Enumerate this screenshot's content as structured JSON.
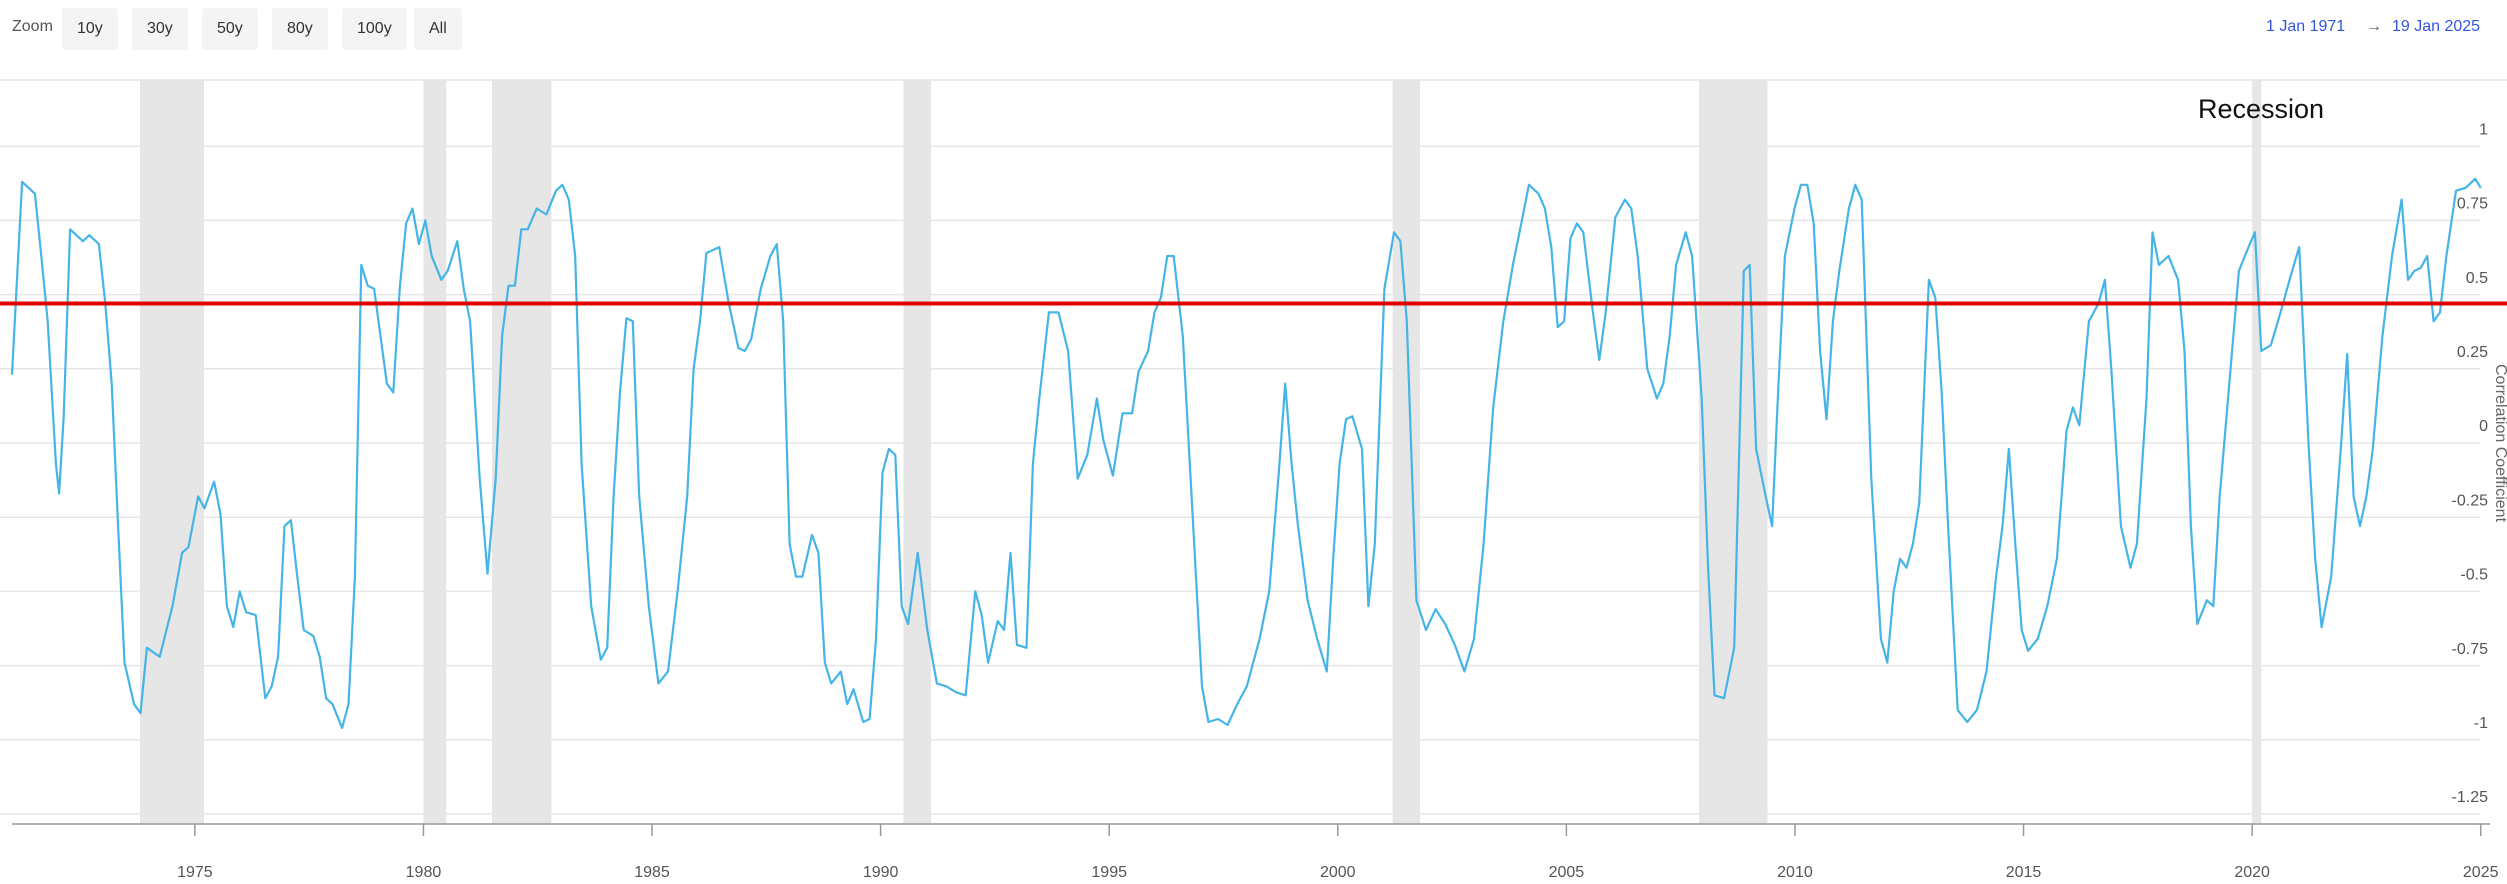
{
  "controls": {
    "zoom_label": "Zoom",
    "zoom_buttons": [
      "10y",
      "30y",
      "50y",
      "80y",
      "100y",
      "All"
    ],
    "date_from": "1 Jan 1971",
    "arrow": "→",
    "date_to": "19 Jan 2025"
  },
  "chart_data": {
    "type": "line",
    "y_label": "Correlation Coefficient",
    "recession_label": "Recession",
    "recession_color": "#e6e6e6",
    "recessions": [
      [
        1973.8,
        1975.2
      ],
      [
        1980.0,
        1980.5
      ],
      [
        1981.5,
        1982.8
      ],
      [
        1990.5,
        1991.1
      ],
      [
        2001.2,
        2001.8
      ],
      [
        2007.9,
        2009.4
      ],
      [
        2020.0,
        2020.2
      ]
    ],
    "reference_line": {
      "value": 0.47,
      "color": "#e00000"
    },
    "xlim": [
      1971,
      2025.05
    ],
    "xticks": [
      1975,
      1980,
      1985,
      1990,
      1995,
      2000,
      2005,
      2010,
      2015,
      2020,
      2025
    ],
    "ylim": [
      -1.25,
      1.25
    ],
    "yticks": [
      1,
      0.75,
      0.5,
      0.25,
      0,
      -0.25,
      -0.5,
      -0.75,
      -1,
      -1.25
    ],
    "grid": true,
    "x": [
      1971.0,
      1971.22,
      1971.5,
      1971.64,
      1971.78,
      1971.96,
      1972.03,
      1972.13,
      1972.27,
      1972.55,
      1972.69,
      1972.9,
      1973.04,
      1973.18,
      1973.32,
      1973.46,
      1973.67,
      1973.81,
      1973.95,
      1974.23,
      1974.51,
      1974.72,
      1974.86,
      1975.07,
      1975.21,
      1975.42,
      1975.56,
      1975.7,
      1975.84,
      1975.98,
      1976.12,
      1976.33,
      1976.54,
      1976.68,
      1976.82,
      1976.96,
      1977.1,
      1977.24,
      1977.38,
      1977.59,
      1977.73,
      1977.87,
      1978.01,
      1978.22,
      1978.36,
      1978.5,
      1978.64,
      1978.78,
      1978.92,
      1979.06,
      1979.2,
      1979.34,
      1979.48,
      1979.62,
      1979.76,
      1979.9,
      1980.04,
      1980.18,
      1980.39,
      1980.53,
      1980.74,
      1980.88,
      1981.02,
      1981.23,
      1981.4,
      1981.58,
      1981.72,
      1981.86,
      1982.0,
      1982.14,
      1982.28,
      1982.48,
      1982.69,
      1982.9,
      1983.04,
      1983.18,
      1983.32,
      1983.46,
      1983.67,
      1983.88,
      1984.02,
      1984.16,
      1984.3,
      1984.44,
      1984.58,
      1984.72,
      1984.93,
      1985.14,
      1985.35,
      1985.56,
      1985.77,
      1985.91,
      1986.05,
      1986.19,
      1986.33,
      1986.47,
      1986.68,
      1986.89,
      1987.03,
      1987.17,
      1987.38,
      1987.59,
      1987.73,
      1987.87,
      1988.01,
      1988.15,
      1988.29,
      1988.5,
      1988.64,
      1988.78,
      1988.92,
      1989.13,
      1989.27,
      1989.41,
      1989.62,
      1989.76,
      1989.9,
      1990.04,
      1990.18,
      1990.32,
      1990.46,
      1990.6,
      1990.81,
      1991.02,
      1991.23,
      1991.44,
      1991.65,
      1991.86,
      1992.07,
      1992.21,
      1992.35,
      1992.56,
      1992.7,
      1992.84,
      1992.98,
      1993.19,
      1993.33,
      1993.47,
      1993.68,
      1993.89,
      1994.1,
      1994.31,
      1994.52,
      1994.73,
      1994.87,
      1995.08,
      1995.29,
      1995.5,
      1995.64,
      1995.85,
      1995.99,
      1996.13,
      1996.27,
      1996.41,
      1996.61,
      1996.82,
      1997.03,
      1997.17,
      1997.38,
      1997.59,
      1997.8,
      1998.01,
      1998.29,
      1998.5,
      1998.71,
      1998.85,
      1998.99,
      1999.13,
      1999.34,
      1999.55,
      1999.76,
      1999.9,
      2000.04,
      2000.18,
      2000.32,
      2000.53,
      2000.67,
      2000.81,
      2001.02,
      2001.23,
      2001.37,
      2001.51,
      2001.72,
      2001.93,
      2002.14,
      2002.35,
      2002.56,
      2002.77,
      2002.98,
      2003.19,
      2003.4,
      2003.62,
      2003.83,
      2004.04,
      2004.18,
      2004.39,
      2004.53,
      2004.67,
      2004.81,
      2004.95,
      2005.09,
      2005.23,
      2005.37,
      2005.58,
      2005.72,
      2005.86,
      2006.07,
      2006.28,
      2006.42,
      2006.56,
      2006.77,
      2006.98,
      2007.12,
      2007.26,
      2007.4,
      2007.61,
      2007.75,
      2007.96,
      2008.1,
      2008.24,
      2008.45,
      2008.67,
      2008.88,
      2009.01,
      2009.15,
      2009.36,
      2009.5,
      2009.64,
      2009.78,
      2009.99,
      2010.13,
      2010.27,
      2010.41,
      2010.55,
      2010.69,
      2010.83,
      2010.97,
      2011.18,
      2011.32,
      2011.46,
      2011.67,
      2011.88,
      2012.02,
      2012.16,
      2012.3,
      2012.44,
      2012.58,
      2012.72,
      2012.93,
      2013.07,
      2013.21,
      2013.35,
      2013.56,
      2013.77,
      2013.98,
      2014.19,
      2014.4,
      2014.54,
      2014.68,
      2014.82,
      2014.96,
      2015.1,
      2015.31,
      2015.52,
      2015.73,
      2015.94,
      2016.08,
      2016.22,
      2016.43,
      2016.64,
      2016.78,
      2016.92,
      2017.13,
      2017.34,
      2017.48,
      2017.69,
      2017.82,
      2017.96,
      2018.17,
      2018.38,
      2018.52,
      2018.66,
      2018.8,
      2019.01,
      2019.15,
      2019.29,
      2019.5,
      2019.71,
      2019.92,
      2020.06,
      2020.2,
      2020.41,
      2020.62,
      2020.82,
      2021.03,
      2021.24,
      2021.38,
      2021.52,
      2021.73,
      2021.94,
      2022.08,
      2022.22,
      2022.36,
      2022.5,
      2022.64,
      2022.85,
      2023.06,
      2023.27,
      2023.41,
      2023.55,
      2023.69,
      2023.83,
      2023.97,
      2024.11,
      2024.25,
      2024.46,
      2024.67,
      2024.88,
      2025.0
    ],
    "series": [
      {
        "color": "#45b4e6",
        "values": [
          0.23,
          0.88,
          0.84,
          0.63,
          0.41,
          -0.07,
          -0.17,
          0.09,
          0.72,
          0.68,
          0.7,
          0.67,
          0.47,
          0.2,
          -0.28,
          -0.74,
          -0.88,
          -0.91,
          -0.69,
          -0.72,
          -0.55,
          -0.37,
          -0.35,
          -0.18,
          -0.22,
          -0.13,
          -0.24,
          -0.55,
          -0.62,
          -0.5,
          -0.57,
          -0.58,
          -0.86,
          -0.82,
          -0.72,
          -0.28,
          -0.26,
          -0.45,
          -0.63,
          -0.65,
          -0.72,
          -0.86,
          -0.88,
          -0.96,
          -0.88,
          -0.45,
          0.6,
          0.53,
          0.52,
          0.36,
          0.2,
          0.17,
          0.52,
          0.74,
          0.79,
          0.67,
          0.75,
          0.63,
          0.55,
          0.58,
          0.68,
          0.52,
          0.41,
          -0.12,
          -0.44,
          -0.12,
          0.36,
          0.53,
          0.53,
          0.72,
          0.72,
          0.79,
          0.77,
          0.85,
          0.87,
          0.82,
          0.63,
          -0.07,
          -0.55,
          -0.73,
          -0.69,
          -0.18,
          0.17,
          0.42,
          0.41,
          -0.18,
          -0.55,
          -0.81,
          -0.77,
          -0.5,
          -0.18,
          0.25,
          0.41,
          0.64,
          0.65,
          0.66,
          0.47,
          0.32,
          0.31,
          0.35,
          0.52,
          0.63,
          0.67,
          0.41,
          -0.34,
          -0.45,
          -0.45,
          -0.31,
          -0.37,
          -0.74,
          -0.81,
          -0.77,
          -0.88,
          -0.83,
          -0.94,
          -0.93,
          -0.66,
          -0.1,
          -0.02,
          -0.04,
          -0.55,
          -0.61,
          -0.37,
          -0.63,
          -0.81,
          -0.82,
          -0.84,
          -0.85,
          -0.5,
          -0.58,
          -0.74,
          -0.6,
          -0.63,
          -0.37,
          -0.68,
          -0.69,
          -0.07,
          0.15,
          0.44,
          0.44,
          0.31,
          -0.12,
          -0.04,
          0.15,
          0.01,
          -0.11,
          0.1,
          0.1,
          0.24,
          0.31,
          0.44,
          0.49,
          0.63,
          0.63,
          0.36,
          -0.23,
          -0.82,
          -0.94,
          -0.93,
          -0.95,
          -0.88,
          -0.82,
          -0.66,
          -0.5,
          -0.1,
          0.2,
          -0.07,
          -0.28,
          -0.53,
          -0.66,
          -0.77,
          -0.39,
          -0.07,
          0.08,
          0.09,
          -0.02,
          -0.55,
          -0.34,
          0.52,
          0.71,
          0.68,
          0.41,
          -0.53,
          -0.63,
          -0.56,
          -0.61,
          -0.68,
          -0.77,
          -0.66,
          -0.34,
          0.12,
          0.41,
          0.6,
          0.76,
          0.87,
          0.84,
          0.79,
          0.66,
          0.39,
          0.41,
          0.69,
          0.74,
          0.71,
          0.44,
          0.28,
          0.44,
          0.76,
          0.82,
          0.79,
          0.63,
          0.25,
          0.15,
          0.2,
          0.36,
          0.6,
          0.71,
          0.63,
          0.15,
          -0.42,
          -0.85,
          -0.86,
          -0.69,
          0.58,
          0.6,
          -0.02,
          -0.18,
          -0.28,
          0.2,
          0.63,
          0.79,
          0.87,
          0.87,
          0.74,
          0.31,
          0.08,
          0.41,
          0.58,
          0.79,
          0.87,
          0.82,
          -0.12,
          -0.66,
          -0.74,
          -0.5,
          -0.39,
          -0.42,
          -0.34,
          -0.2,
          0.55,
          0.49,
          0.17,
          -0.28,
          -0.9,
          -0.94,
          -0.9,
          -0.77,
          -0.45,
          -0.28,
          -0.02,
          -0.34,
          -0.63,
          -0.7,
          -0.66,
          -0.55,
          -0.39,
          0.04,
          0.12,
          0.06,
          0.41,
          0.47,
          0.55,
          0.25,
          -0.28,
          -0.42,
          -0.34,
          0.15,
          0.71,
          0.6,
          0.63,
          0.55,
          0.31,
          -0.28,
          -0.61,
          -0.53,
          -0.55,
          -0.18,
          0.2,
          0.58,
          0.66,
          0.71,
          0.31,
          0.33,
          0.44,
          0.55,
          0.66,
          -0.02,
          -0.39,
          -0.62,
          -0.45,
          -0.02,
          0.3,
          -0.18,
          -0.28,
          -0.18,
          -0.02,
          0.36,
          0.63,
          0.82,
          0.55,
          0.58,
          0.59,
          0.63,
          0.41,
          0.44,
          0.63,
          0.85,
          0.86,
          0.89,
          0.86
        ]
      }
    ]
  }
}
